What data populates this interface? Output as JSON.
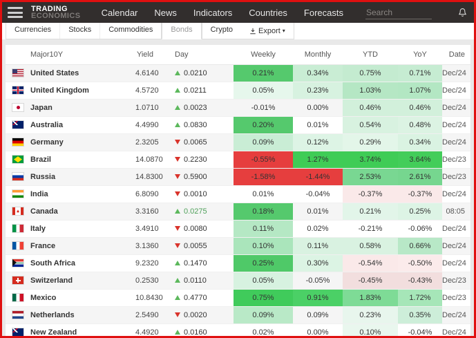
{
  "header": {
    "brand_line1": "TRADING",
    "brand_line2": "ECONOMICS",
    "nav": [
      "Calendar",
      "News",
      "Indicators",
      "Countries",
      "Forecasts"
    ],
    "search_placeholder": "Search"
  },
  "tabs": {
    "items": [
      {
        "label": "Currencies",
        "active": false
      },
      {
        "label": "Stocks",
        "active": false
      },
      {
        "label": "Commodities",
        "active": false
      },
      {
        "label": "Bonds",
        "active": true
      },
      {
        "label": "Crypto",
        "active": false
      }
    ],
    "export_label": "Export"
  },
  "colors": {
    "up_arrow": "#5cb85c",
    "down_arrow": "#d9332b",
    "strong_green": "#55c96d",
    "bright_green": "#3fcc56",
    "strong_red": "#e63e3e",
    "frame_border": "#e01010",
    "topbar_bg": "#322e2d"
  },
  "table": {
    "columns": [
      "Major10Y",
      "Yield",
      "Day",
      "Weekly",
      "Monthly",
      "YTD",
      "YoY",
      "Date"
    ],
    "rows": [
      {
        "flag": "us",
        "country": "United States",
        "yield": "4.6140",
        "day_dir": "up",
        "day": "0.0210",
        "weekly": {
          "text": "0.21%",
          "bg": "#55c96d"
        },
        "monthly": {
          "text": "0.34%",
          "bg": "#c9edd4"
        },
        "ytd": {
          "text": "0.75%",
          "bg": "#c4ebd0"
        },
        "yoy": {
          "text": "0.71%",
          "bg": "#c6ecd2"
        },
        "date": "Dec/24"
      },
      {
        "flag": "gb",
        "country": "United Kingdom",
        "yield": "4.5720",
        "day_dir": "up",
        "day": "0.0211",
        "weekly": {
          "text": "0.05%",
          "bg": "#e6f7ec"
        },
        "monthly": {
          "text": "0.23%",
          "bg": "#d7f2e0"
        },
        "ytd": {
          "text": "1.03%",
          "bg": "#b5e7c4"
        },
        "yoy": {
          "text": "1.07%",
          "bg": "#b3e7c3"
        },
        "date": "Dec/24"
      },
      {
        "flag": "jp",
        "country": "Japan",
        "yield": "1.0710",
        "day_dir": "up",
        "day": "0.0023",
        "weekly": {
          "text": "-0.01%",
          "bg": ""
        },
        "monthly": {
          "text": "0.00%",
          "bg": ""
        },
        "ytd": {
          "text": "0.46%",
          "bg": "#d2f0db"
        },
        "yoy": {
          "text": "0.46%",
          "bg": "#d2f0db"
        },
        "date": "Dec/24"
      },
      {
        "flag": "au",
        "country": "Australia",
        "yield": "4.4990",
        "day_dir": "up",
        "day": "0.0830",
        "weekly": {
          "text": "0.20%",
          "bg": "#55c96d"
        },
        "monthly": {
          "text": "0.01%",
          "bg": ""
        },
        "ytd": {
          "text": "0.54%",
          "bg": "#d8f2e0"
        },
        "yoy": {
          "text": "0.48%",
          "bg": "#dcf3e3"
        },
        "date": "Dec/24"
      },
      {
        "flag": "de",
        "country": "Germany",
        "yield": "2.3205",
        "day_dir": "down",
        "day": "0.0065",
        "weekly": {
          "text": "0.09%",
          "bg": "#c9edd5"
        },
        "monthly": {
          "text": "0.12%",
          "bg": "#ddf4e5"
        },
        "ytd": {
          "text": "0.29%",
          "bg": "#e3f6e9"
        },
        "yoy": {
          "text": "0.34%",
          "bg": "#daf3e2"
        },
        "date": "Dec/24"
      },
      {
        "flag": "br",
        "country": "Brazil",
        "yield": "14.0870",
        "day_dir": "down",
        "day": "0.2230",
        "weekly": {
          "text": "-0.55%",
          "bg": "#e63e3e"
        },
        "monthly": {
          "text": "1.27%",
          "bg": "#3fcc56"
        },
        "ytd": {
          "text": "3.74%",
          "bg": "#3fcc56"
        },
        "yoy": {
          "text": "3.64%",
          "bg": "#43cd5a"
        },
        "date": "Dec/23"
      },
      {
        "flag": "ru",
        "country": "Russia",
        "yield": "14.8300",
        "day_dir": "down",
        "day": "0.5900",
        "weekly": {
          "text": "-1.58%",
          "bg": "#e63e3e"
        },
        "monthly": {
          "text": "-1.44%",
          "bg": "#e63e3e"
        },
        "ytd": {
          "text": "2.53%",
          "bg": "#79d792"
        },
        "yoy": {
          "text": "2.61%",
          "bg": "#76d68f"
        },
        "date": "Dec/23"
      },
      {
        "flag": "in",
        "country": "India",
        "yield": "6.8090",
        "day_dir": "down",
        "day": "0.0010",
        "weekly": {
          "text": "0.01%",
          "bg": ""
        },
        "monthly": {
          "text": "-0.04%",
          "bg": ""
        },
        "ytd": {
          "text": "-0.37%",
          "bg": "#fae9e9"
        },
        "yoy": {
          "text": "-0.37%",
          "bg": "#fae9e9"
        },
        "date": "Dec/24"
      },
      {
        "flag": "ca",
        "country": "Canada",
        "yield": "3.3160",
        "day_dir": "up",
        "day": "0.0275",
        "day_color": "#4fa05a",
        "weekly": {
          "text": "0.18%",
          "bg": "#55c96d"
        },
        "monthly": {
          "text": "0.01%",
          "bg": ""
        },
        "ytd": {
          "text": "0.21%",
          "bg": "#e2f5e9"
        },
        "yoy": {
          "text": "0.25%",
          "bg": "#ddf4e5"
        },
        "date": "08:05"
      },
      {
        "flag": "it",
        "country": "Italy",
        "yield": "3.4910",
        "day_dir": "down",
        "day": "0.0080",
        "weekly": {
          "text": "0.11%",
          "bg": "#b5e8c4"
        },
        "monthly": {
          "text": "0.02%",
          "bg": ""
        },
        "ytd": {
          "text": "-0.21%",
          "bg": ""
        },
        "yoy": {
          "text": "-0.06%",
          "bg": ""
        },
        "date": "Dec/24"
      },
      {
        "flag": "fr",
        "country": "France",
        "yield": "3.1360",
        "day_dir": "down",
        "day": "0.0055",
        "weekly": {
          "text": "0.10%",
          "bg": "#aae5bb"
        },
        "monthly": {
          "text": "0.11%",
          "bg": "#d9f2e1"
        },
        "ytd": {
          "text": "0.58%",
          "bg": "#d9f2e1"
        },
        "yoy": {
          "text": "0.66%",
          "bg": "#b8e8c7"
        },
        "date": "Dec/24"
      },
      {
        "flag": "za",
        "country": "South Africa",
        "yield": "9.2320",
        "day_dir": "up",
        "day": "0.1470",
        "weekly": {
          "text": "0.25%",
          "bg": "#4fc968"
        },
        "monthly": {
          "text": "0.30%",
          "bg": "#dcf4e4"
        },
        "ytd": {
          "text": "-0.54%",
          "bg": "#fae9e9"
        },
        "yoy": {
          "text": "-0.50%",
          "bg": "#fbebeb"
        },
        "date": "Dec/24"
      },
      {
        "flag": "ch",
        "country": "Switzerland",
        "yield": "0.2530",
        "day_dir": "up",
        "day": "0.0110",
        "weekly": {
          "text": "0.05%",
          "bg": "#d7f2e0"
        },
        "monthly": {
          "text": "-0.05%",
          "bg": ""
        },
        "ytd": {
          "text": "-0.45%",
          "bg": "#f2dede"
        },
        "yoy": {
          "text": "-0.43%",
          "bg": "#f2dede"
        },
        "date": "Dec/23"
      },
      {
        "flag": "mx",
        "country": "Mexico",
        "yield": "10.8430",
        "day_dir": "up",
        "day": "0.4770",
        "weekly": {
          "text": "0.75%",
          "bg": "#40cb5b"
        },
        "monthly": {
          "text": "0.91%",
          "bg": "#4bd066"
        },
        "ytd": {
          "text": "1.83%",
          "bg": "#7edb96"
        },
        "yoy": {
          "text": "1.72%",
          "bg": "#a6e6b8"
        },
        "date": "Dec/23"
      },
      {
        "flag": "nl",
        "country": "Netherlands",
        "yield": "2.5490",
        "day_dir": "down",
        "day": "0.0020",
        "weekly": {
          "text": "0.09%",
          "bg": "#b9e9c7"
        },
        "monthly": {
          "text": "0.09%",
          "bg": ""
        },
        "ytd": {
          "text": "0.23%",
          "bg": "#e8f6ed"
        },
        "yoy": {
          "text": "0.35%",
          "bg": "#cdeed9"
        },
        "date": "Dec/24"
      },
      {
        "flag": "nz",
        "country": "New Zealand",
        "yield": "4.4920",
        "day_dir": "up",
        "day": "0.0160",
        "weekly": {
          "text": "0.02%",
          "bg": ""
        },
        "monthly": {
          "text": "0.00%",
          "bg": ""
        },
        "ytd": {
          "text": "0.10%",
          "bg": "#e9f7ee"
        },
        "yoy": {
          "text": "-0.04%",
          "bg": ""
        },
        "date": "Dec/24"
      }
    ]
  }
}
